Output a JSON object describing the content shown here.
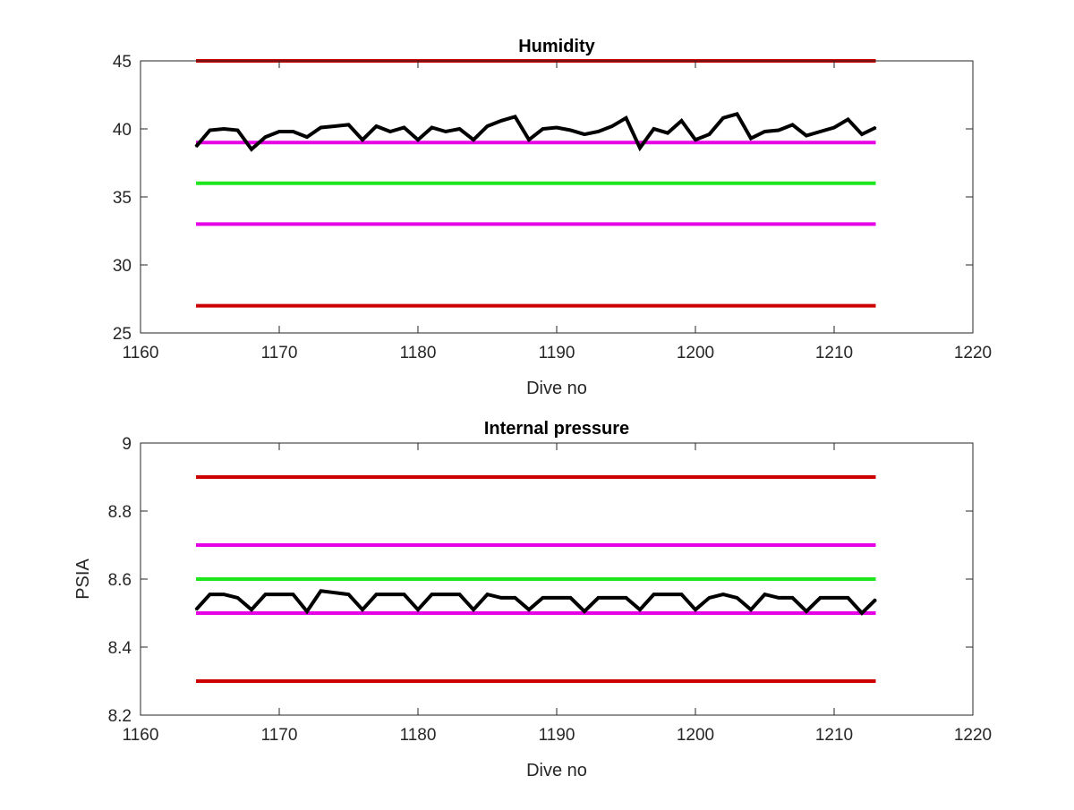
{
  "chart_data": [
    {
      "type": "line",
      "title": "Humidity",
      "xlabel": "Dive no",
      "ylabel": "",
      "xlim": [
        1160,
        1220
      ],
      "ylim": [
        25,
        45
      ],
      "xticks": [
        1160,
        1170,
        1180,
        1190,
        1200,
        1210,
        1220
      ],
      "xtick_labels": [
        "1160",
        "1170",
        "1180",
        "1190",
        "1200",
        "1210",
        "1220"
      ],
      "yticks": [
        25,
        30,
        35,
        40,
        45
      ],
      "ytick_labels": [
        "25",
        "30",
        "35",
        "40",
        "45"
      ],
      "grid": false,
      "reference_lines": [
        {
          "y": 45,
          "x": [
            1164,
            1213
          ],
          "color": "#cc0000"
        },
        {
          "y": 39,
          "x": [
            1164,
            1213
          ],
          "color": "#e600e6"
        },
        {
          "y": 36,
          "x": [
            1164,
            1213
          ],
          "color": "#1ee61e"
        },
        {
          "y": 33,
          "x": [
            1164,
            1213
          ],
          "color": "#e600e6"
        },
        {
          "y": 27,
          "x": [
            1164,
            1213
          ],
          "color": "#cc0000"
        }
      ],
      "series": [
        {
          "color": "#000000",
          "x": [
            1164,
            1165,
            1166,
            1167,
            1168,
            1169,
            1170,
            1171,
            1172,
            1173,
            1174,
            1175,
            1176,
            1177,
            1178,
            1179,
            1180,
            1181,
            1182,
            1183,
            1184,
            1185,
            1186,
            1187,
            1188,
            1189,
            1190,
            1191,
            1192,
            1193,
            1194,
            1195,
            1196,
            1197,
            1198,
            1199,
            1200,
            1201,
            1202,
            1203,
            1204,
            1205,
            1206,
            1207,
            1208,
            1209,
            1210,
            1211,
            1212,
            1213
          ],
          "values": [
            38.7,
            39.9,
            40.0,
            39.9,
            38.5,
            39.4,
            39.8,
            39.8,
            39.4,
            40.1,
            40.2,
            40.3,
            39.2,
            40.2,
            39.8,
            40.1,
            39.2,
            40.1,
            39.8,
            40.0,
            39.2,
            40.2,
            40.6,
            40.9,
            39.2,
            40.0,
            40.1,
            39.9,
            39.6,
            39.8,
            40.2,
            40.8,
            38.6,
            40.0,
            39.7,
            40.6,
            39.2,
            39.6,
            40.8,
            41.1,
            39.3,
            39.8,
            39.9,
            40.3,
            39.5,
            39.8,
            40.1,
            40.7,
            39.6,
            40.1
          ]
        }
      ]
    },
    {
      "type": "line",
      "title": "Internal pressure",
      "xlabel": "Dive no",
      "ylabel": "PSIA",
      "xlim": [
        1160,
        1220
      ],
      "ylim": [
        8.2,
        9.0
      ],
      "xticks": [
        1160,
        1170,
        1180,
        1190,
        1200,
        1210,
        1220
      ],
      "xtick_labels": [
        "1160",
        "1170",
        "1180",
        "1190",
        "1200",
        "1210",
        "1220"
      ],
      "yticks": [
        8.2,
        8.4,
        8.6,
        8.8,
        9.0
      ],
      "ytick_labels": [
        "8.2",
        "8.4",
        "8.6",
        "8.8",
        "9"
      ],
      "grid": false,
      "reference_lines": [
        {
          "y": 8.9,
          "x": [
            1164,
            1213
          ],
          "color": "#cc0000"
        },
        {
          "y": 8.7,
          "x": [
            1164,
            1213
          ],
          "color": "#e600e6"
        },
        {
          "y": 8.6,
          "x": [
            1164,
            1213
          ],
          "color": "#1ee61e"
        },
        {
          "y": 8.5,
          "x": [
            1164,
            1213
          ],
          "color": "#e600e6"
        },
        {
          "y": 8.3,
          "x": [
            1164,
            1213
          ],
          "color": "#cc0000"
        }
      ],
      "series": [
        {
          "color": "#000000",
          "x": [
            1164,
            1165,
            1166,
            1167,
            1168,
            1169,
            1170,
            1171,
            1172,
            1173,
            1174,
            1175,
            1176,
            1177,
            1178,
            1179,
            1180,
            1181,
            1182,
            1183,
            1184,
            1185,
            1186,
            1187,
            1188,
            1189,
            1190,
            1191,
            1192,
            1193,
            1194,
            1195,
            1196,
            1197,
            1198,
            1199,
            1200,
            1201,
            1202,
            1203,
            1204,
            1205,
            1206,
            1207,
            1208,
            1209,
            1210,
            1211,
            1212,
            1213
          ],
          "values": [
            8.51,
            8.555,
            8.555,
            8.545,
            8.51,
            8.555,
            8.555,
            8.555,
            8.505,
            8.565,
            8.56,
            8.555,
            8.51,
            8.555,
            8.555,
            8.555,
            8.51,
            8.555,
            8.555,
            8.555,
            8.51,
            8.555,
            8.545,
            8.545,
            8.51,
            8.545,
            8.545,
            8.545,
            8.505,
            8.545,
            8.545,
            8.545,
            8.51,
            8.555,
            8.555,
            8.555,
            8.51,
            8.545,
            8.555,
            8.545,
            8.51,
            8.555,
            8.545,
            8.545,
            8.505,
            8.545,
            8.545,
            8.545,
            8.5,
            8.54
          ]
        }
      ]
    }
  ]
}
